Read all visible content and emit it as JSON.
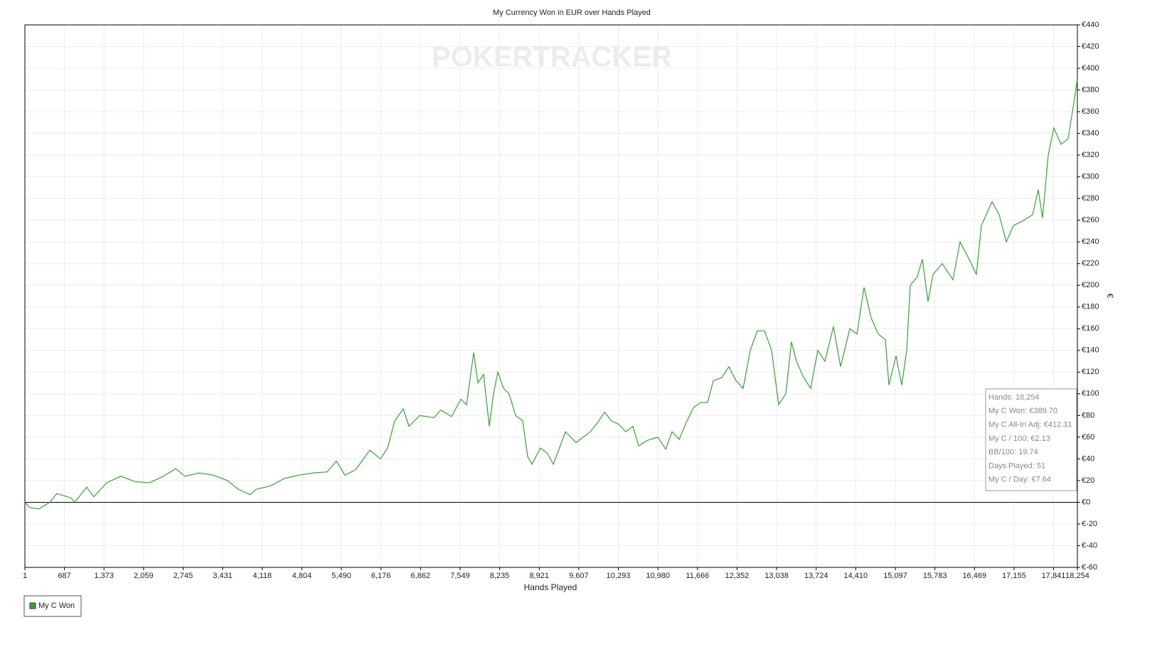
{
  "chart_data": {
    "type": "line",
    "title": "My Currency Won in EUR over Hands Played",
    "watermark": "POKERTRACKER",
    "x_label": "Hands Played",
    "y_label": "€",
    "xlim": [
      1,
      18254
    ],
    "ylim": [
      -60,
      440
    ],
    "grid": true,
    "legend": "bottom-left",
    "xticks": [
      1,
      687,
      {
        "value": 1373,
        "label": "1,373"
      },
      {
        "value": 2059,
        "label": "2,059"
      },
      {
        "value": 2745,
        "label": "2,745"
      },
      {
        "value": 3431,
        "label": "3,431"
      },
      {
        "value": 4118,
        "label": "4,118"
      },
      {
        "value": 4804,
        "label": "4,804"
      },
      {
        "value": 5490,
        "label": "5,490"
      },
      {
        "value": 6176,
        "label": "6,176"
      },
      {
        "value": 6862,
        "label": "6,862"
      },
      {
        "value": 7549,
        "label": "7,549"
      },
      {
        "value": 8235,
        "label": "8,235"
      },
      {
        "value": 8921,
        "label": "8,921"
      },
      {
        "value": 9607,
        "label": "9,607"
      },
      {
        "value": 10293,
        "label": "10,293"
      },
      {
        "value": 10980,
        "label": "10,980"
      },
      {
        "value": 11666,
        "label": "11,666"
      },
      {
        "value": 12352,
        "label": "12,352"
      },
      {
        "value": 13038,
        "label": "13,038"
      },
      {
        "value": 13724,
        "label": "13,724"
      },
      {
        "value": 14410,
        "label": "14,410"
      },
      {
        "value": 15097,
        "label": "15,097"
      },
      {
        "value": 15783,
        "label": "15,783"
      },
      {
        "value": 16469,
        "label": "16,469"
      },
      {
        "value": 17155,
        "label": "17,155"
      },
      {
        "value": 17841,
        "label": "17,841"
      },
      {
        "value": 18254,
        "label": "18,254"
      }
    ],
    "yticks": [
      {
        "value": -60,
        "label": "€-60"
      },
      {
        "value": -40,
        "label": "€-40"
      },
      {
        "value": -20,
        "label": "€-20"
      },
      {
        "value": 0,
        "label": "€0"
      },
      {
        "value": 20,
        "label": "€20"
      },
      {
        "value": 40,
        "label": "€40"
      },
      {
        "value": 60,
        "label": "€60"
      },
      {
        "value": 80,
        "label": "€80"
      },
      {
        "value": 100,
        "label": "€100"
      },
      {
        "value": 120,
        "label": "€120"
      },
      {
        "value": 140,
        "label": "€140"
      },
      {
        "value": 160,
        "label": "€160"
      },
      {
        "value": 180,
        "label": "€180"
      },
      {
        "value": 200,
        "label": "€200"
      },
      {
        "value": 220,
        "label": "€220"
      },
      {
        "value": 240,
        "label": "€240"
      },
      {
        "value": 260,
        "label": "€260"
      },
      {
        "value": 280,
        "label": "€280"
      },
      {
        "value": 300,
        "label": "€300"
      },
      {
        "value": 320,
        "label": "€320"
      },
      {
        "value": 340,
        "label": "€340"
      },
      {
        "value": 360,
        "label": "€360"
      },
      {
        "value": 380,
        "label": "€380"
      },
      {
        "value": 400,
        "label": "€400"
      },
      {
        "value": 420,
        "label": "€420"
      },
      {
        "value": 440,
        "label": "€440"
      }
    ],
    "x": [
      1,
      87,
      248,
      433,
      556,
      803,
      864,
      1074,
      1197,
      1419,
      1666,
      1913,
      2159,
      2406,
      2616,
      2776,
      3023,
      3270,
      3516,
      3701,
      3911,
      4010,
      4256,
      4503,
      4750,
      4996,
      5243,
      5403,
      5551,
      5736,
      5983,
      6168,
      6292,
      6415,
      6563,
      6662,
      6847,
      7093,
      7217,
      7402,
      7562,
      7661,
      7784,
      7858,
      7956,
      8055,
      8129,
      8203,
      8302,
      8400,
      8511,
      8634,
      8721,
      8795,
      8943,
      9066,
      9165,
      9251,
      9375,
      9560,
      9806,
      9930,
      10053,
      10176,
      10300,
      10423,
      10546,
      10645,
      10793,
      10978,
      11114,
      11225,
      11348,
      11484,
      11595,
      11718,
      11842,
      11940,
      12088,
      12212,
      12334,
      12458,
      12581,
      12704,
      12828,
      12951,
      13074,
      13198,
      13296,
      13382,
      13506,
      13629,
      13752,
      13876,
      14024,
      14147,
      14308,
      14431,
      14554,
      14677,
      14801,
      14924,
      14986,
      15109,
      15208,
      15294,
      15356,
      15479,
      15566,
      15664,
      15751,
      15911,
      16096,
      16219,
      16367,
      16503,
      16589,
      16774,
      16898,
      17021,
      17144,
      17329,
      17477,
      17576,
      17650,
      17749,
      17847,
      17970,
      18094,
      18168,
      18254
    ],
    "series": [
      {
        "name": "My C Won",
        "color": "#34a334",
        "values": [
          0,
          -5,
          -6,
          0,
          8,
          4,
          0,
          14,
          5,
          18,
          24,
          19,
          18,
          24,
          31,
          24,
          27,
          25,
          20,
          12,
          7,
          12,
          15,
          22,
          25,
          27,
          28,
          38,
          25,
          30,
          48,
          40,
          50,
          75,
          86,
          70,
          80,
          78,
          85,
          79,
          95,
          90,
          138,
          110,
          118,
          70,
          100,
          120,
          105,
          100,
          80,
          75,
          42,
          35,
          50,
          45,
          35,
          47,
          65,
          55,
          65,
          73,
          83,
          75,
          72,
          65,
          70,
          52,
          57,
          60,
          49,
          65,
          58,
          75,
          87,
          92,
          92,
          112,
          115,
          125,
          112,
          105,
          140,
          158,
          158,
          140,
          90,
          100,
          148,
          130,
          115,
          105,
          140,
          130,
          162,
          125,
          160,
          155,
          198,
          170,
          155,
          150,
          108,
          135,
          108,
          140,
          200,
          208,
          224,
          185,
          210,
          220,
          205,
          240,
          225,
          210,
          255,
          277,
          265,
          240,
          255,
          260,
          265,
          288,
          262,
          320,
          345,
          330,
          335,
          360,
          389.7
        ]
      }
    ],
    "info_box": [
      "Hands: 18,254",
      "My C Won: €389.70",
      "My C All-In Adj: €412.31",
      "My C / 100: €2.13",
      "BB/100: 19.74",
      "Days Played: 51",
      "My C / Day: €7.64"
    ]
  }
}
